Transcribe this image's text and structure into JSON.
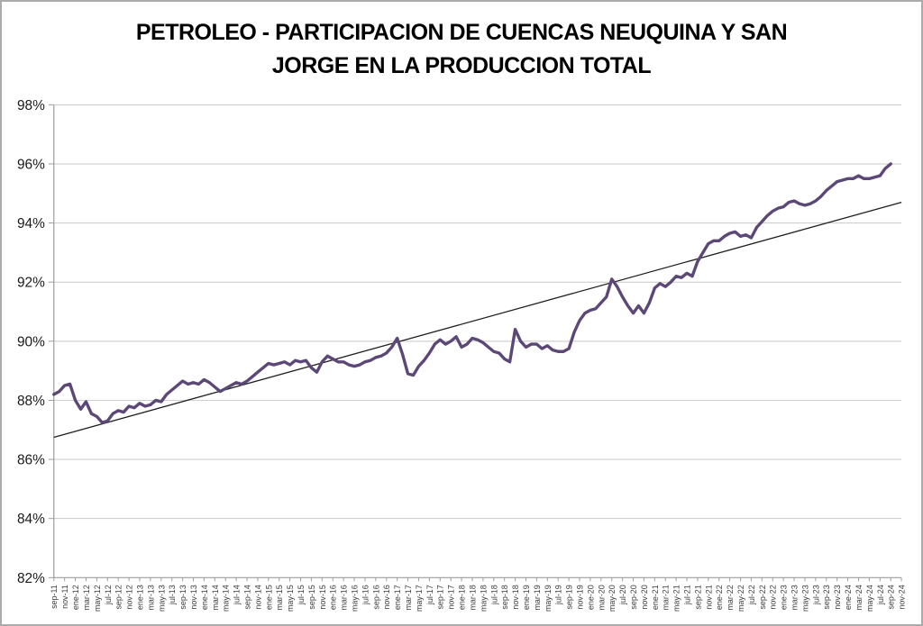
{
  "title": {
    "line1": "PETROLEO - PARTICIPACION DE CUENCAS NEUQUINA Y SAN",
    "line2": "JORGE EN LA PRODUCCION TOTAL"
  },
  "colors": {
    "series": "#5C4876",
    "trendline": "#1f1f1f",
    "gridline": "#c8c8c8",
    "axis": "#9b9b9b",
    "tick_text": "#3a3a3a",
    "y_text": "#1a1a1a",
    "title_text": "#000000",
    "frame_border": "#ababab"
  },
  "chart_data": {
    "type": "line",
    "title": "PETROLEO - PARTICIPACION DE CUENCAS NEUQUINA Y SAN JORGE EN LA PRODUCCION TOTAL",
    "grid": {
      "horizontal": true,
      "vertical": false
    },
    "legend": "none",
    "y_axis": {
      "min": 82,
      "max": 98,
      "step": 2,
      "tick_labels": [
        "82%",
        "84%",
        "86%",
        "88%",
        "90%",
        "92%",
        "94%",
        "96%",
        "98%"
      ]
    },
    "x_axis": {
      "frequency": "monthly",
      "first_data_month": "sep-11",
      "last_data_month": "sep-24",
      "labels_every_n_months": 2,
      "tick_labels": [
        "sep-11",
        "nov-11",
        "ene-12",
        "mar-12",
        "may-12",
        "jul-12",
        "sep-12",
        "nov-12",
        "ene-13",
        "mar-13",
        "may-13",
        "jul-13",
        "sep-13",
        "nov-13",
        "ene-14",
        "mar-14",
        "may-14",
        "jul-14",
        "sep-14",
        "nov-14",
        "ene-15",
        "mar-15",
        "may-15",
        "jul-15",
        "sep-15",
        "nov-15",
        "ene-16",
        "mar-16",
        "may-16",
        "jul-16",
        "sep-16",
        "nov-16",
        "ene-17",
        "mar-17",
        "may-17",
        "jul-17",
        "sep-17",
        "nov-17",
        "ene-18",
        "mar-18",
        "may-18",
        "jul-18",
        "sep-18",
        "nov-18",
        "ene-19",
        "mar-19",
        "may-19",
        "jul-19",
        "sep-19",
        "nov-19",
        "ene-20",
        "mar-20",
        "may-20",
        "jul-20",
        "sep-20",
        "nov-20",
        "ene-21",
        "mar-21",
        "may-21",
        "jul-21",
        "sep-21",
        "nov-21",
        "ene-22",
        "mar-22",
        "may-22",
        "jul-22",
        "sep-22",
        "nov-22",
        "ene-23",
        "mar-23",
        "may-23",
        "jul-23",
        "sep-23",
        "nov-23",
        "ene-24",
        "mar-24",
        "may-24",
        "jul-24",
        "sep-24",
        "nov-24"
      ]
    },
    "series": [
      {
        "name": "participacion-cuencas-neuquina-san-jorge",
        "color": "#5C4876",
        "start_month": "sep-11",
        "unit": "percent",
        "values": [
          88.2,
          88.3,
          88.5,
          88.55,
          88.0,
          87.7,
          87.95,
          87.55,
          87.45,
          87.25,
          87.3,
          87.55,
          87.65,
          87.6,
          87.8,
          87.75,
          87.9,
          87.8,
          87.85,
          88.0,
          87.95,
          88.2,
          88.35,
          88.5,
          88.65,
          88.55,
          88.6,
          88.55,
          88.7,
          88.6,
          88.45,
          88.3,
          88.4,
          88.5,
          88.6,
          88.55,
          88.65,
          88.8,
          88.95,
          89.1,
          89.25,
          89.2,
          89.25,
          89.3,
          89.2,
          89.35,
          89.3,
          89.35,
          89.1,
          88.95,
          89.3,
          89.5,
          89.4,
          89.3,
          89.3,
          89.2,
          89.15,
          89.2,
          89.3,
          89.35,
          89.45,
          89.5,
          89.6,
          89.8,
          90.1,
          89.55,
          88.9,
          88.85,
          89.15,
          89.35,
          89.6,
          89.9,
          90.05,
          89.9,
          90.0,
          90.15,
          89.8,
          89.9,
          90.1,
          90.05,
          89.95,
          89.8,
          89.65,
          89.6,
          89.4,
          89.3,
          90.4,
          90.0,
          89.8,
          89.9,
          89.9,
          89.75,
          89.85,
          89.7,
          89.65,
          89.65,
          89.75,
          90.3,
          90.7,
          90.95,
          91.05,
          91.1,
          91.3,
          91.5,
          92.1,
          91.85,
          91.5,
          91.2,
          90.95,
          91.2,
          90.95,
          91.3,
          91.8,
          91.95,
          91.85,
          92.0,
          92.2,
          92.15,
          92.3,
          92.2,
          92.7,
          93.0,
          93.3,
          93.4,
          93.4,
          93.55,
          93.65,
          93.7,
          93.55,
          93.6,
          93.5,
          93.85,
          94.05,
          94.25,
          94.4,
          94.5,
          94.55,
          94.7,
          94.75,
          94.65,
          94.6,
          94.65,
          94.75,
          94.9,
          95.1,
          95.25,
          95.4,
          95.45,
          95.5,
          95.5,
          95.6,
          95.5,
          95.5,
          95.55,
          95.6,
          95.85,
          96.0
        ]
      }
    ],
    "trendline": {
      "name": "tendencia-lineal",
      "color": "#1f1f1f",
      "x_start": "sep-11",
      "x_end": "nov-24",
      "y_start": 86.75,
      "y_end": 94.7
    }
  }
}
